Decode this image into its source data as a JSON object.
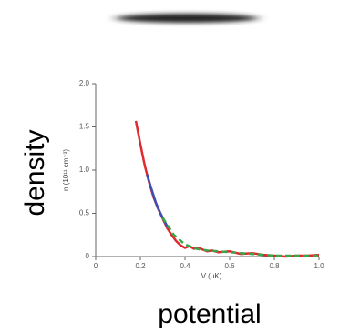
{
  "chart_data": {
    "type": "line",
    "outer_ylabel": "density",
    "outer_xlabel": "potential",
    "ylabel": "n (10¹¹ cm⁻³)",
    "xlabel": "V (μK)",
    "xlim": [
      0,
      1
    ],
    "ylim": [
      0,
      2
    ],
    "xticks": [
      0,
      0.2,
      0.4,
      0.6,
      0.8,
      {
        "value": 1,
        "label": "1.0"
      }
    ],
    "yticks": [
      0,
      0.5,
      {
        "value": 1,
        "label": "1.0"
      },
      1.5,
      {
        "value": 2,
        "label": "2.0"
      }
    ],
    "series": [
      {
        "color": "#e0282e",
        "style": "solid",
        "x": [
          0.18,
          0.2,
          0.22,
          0.24,
          0.26,
          0.28,
          0.3,
          0.32,
          0.34,
          0.36,
          0.38,
          0.4,
          0.42,
          0.44,
          0.46,
          0.48,
          0.5,
          0.52,
          0.55,
          0.6,
          0.65,
          0.7,
          0.75,
          0.8,
          0.85,
          0.9,
          0.95,
          1.0
        ],
        "values": [
          1.57,
          1.3,
          1.05,
          0.85,
          0.68,
          0.55,
          0.44,
          0.33,
          0.25,
          0.18,
          0.13,
          0.1,
          0.12,
          0.09,
          0.1,
          0.08,
          0.06,
          0.07,
          0.05,
          0.06,
          0.03,
          0.04,
          0.02,
          0.01,
          0.0,
          0.01,
          0.01,
          0.02
        ]
      },
      {
        "color": "#3a4fb0",
        "style": "solid",
        "x": [
          0.23,
          0.25,
          0.27,
          0.29,
          0.31,
          0.32
        ],
        "values": [
          0.95,
          0.78,
          0.62,
          0.5,
          0.4,
          0.35
        ]
      },
      {
        "color": "#3aa64a",
        "style": "dashed",
        "x": [
          0.3,
          0.35,
          0.4,
          0.45,
          0.5,
          0.55,
          0.6,
          0.65,
          0.7,
          0.75,
          0.8,
          0.9,
          1.0
        ],
        "values": [
          0.45,
          0.25,
          0.14,
          0.09,
          0.07,
          0.06,
          0.05,
          0.04,
          0.03,
          0.02,
          0.01,
          0.01,
          0.01
        ]
      }
    ]
  }
}
